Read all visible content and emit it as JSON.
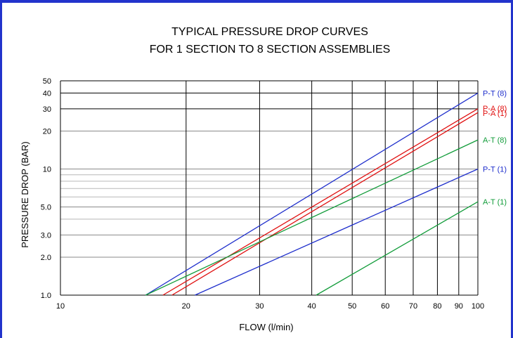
{
  "chart_data": {
    "type": "line",
    "title": [
      "TYPICAL PRESSURE DROP CURVES",
      "FOR 1 SECTION TO 8 SECTION ASSEMBLIES"
    ],
    "xlabel": "FLOW (l/min)",
    "ylabel": "PRESSURE DROP (BAR)",
    "x_scale": "log",
    "y_scale": "log",
    "xlim": [
      10,
      100
    ],
    "ylim": [
      1,
      50
    ],
    "x_ticks": [
      10,
      20,
      30,
      40,
      50,
      60,
      70,
      80,
      90,
      100
    ],
    "x_tick_labels": [
      "10",
      "20",
      "30",
      "40",
      "50",
      "60",
      "70",
      "80",
      "90",
      "100"
    ],
    "y_ticks": [
      1,
      2,
      3,
      5,
      10,
      20,
      30,
      40,
      50
    ],
    "y_tick_labels": [
      "1.0",
      "2.0",
      "3.0",
      "5.0",
      "10",
      "20",
      "30",
      "40",
      "50"
    ],
    "y_minor_gridlines": [
      4,
      6,
      7,
      8,
      9
    ],
    "grid": true,
    "colors": {
      "frame": "#2233cc",
      "blue": "#1f2fcc",
      "red": "#e01010",
      "green": "#129c3a"
    },
    "series": [
      {
        "name": "P-T (8)",
        "color": "#1f2fcc",
        "x": [
          16,
          100
        ],
        "y": [
          1.0,
          40
        ]
      },
      {
        "name": "P-A (8)",
        "color": "#e01010",
        "x": [
          17.6,
          100
        ],
        "y": [
          1.0,
          30
        ]
      },
      {
        "name": "P-A (1)",
        "color": "#e01010",
        "x": [
          18.5,
          100
        ],
        "y": [
          1.0,
          28
        ]
      },
      {
        "name": "A-T (8)",
        "color": "#129c3a",
        "x": [
          16,
          100
        ],
        "y": [
          1.0,
          17
        ]
      },
      {
        "name": "P-T (1)",
        "color": "#1f2fcc",
        "x": [
          21,
          100
        ],
        "y": [
          1.0,
          10
        ]
      },
      {
        "name": "A-T (1)",
        "color": "#129c3a",
        "x": [
          41,
          100
        ],
        "y": [
          1.0,
          5.5
        ]
      }
    ]
  }
}
